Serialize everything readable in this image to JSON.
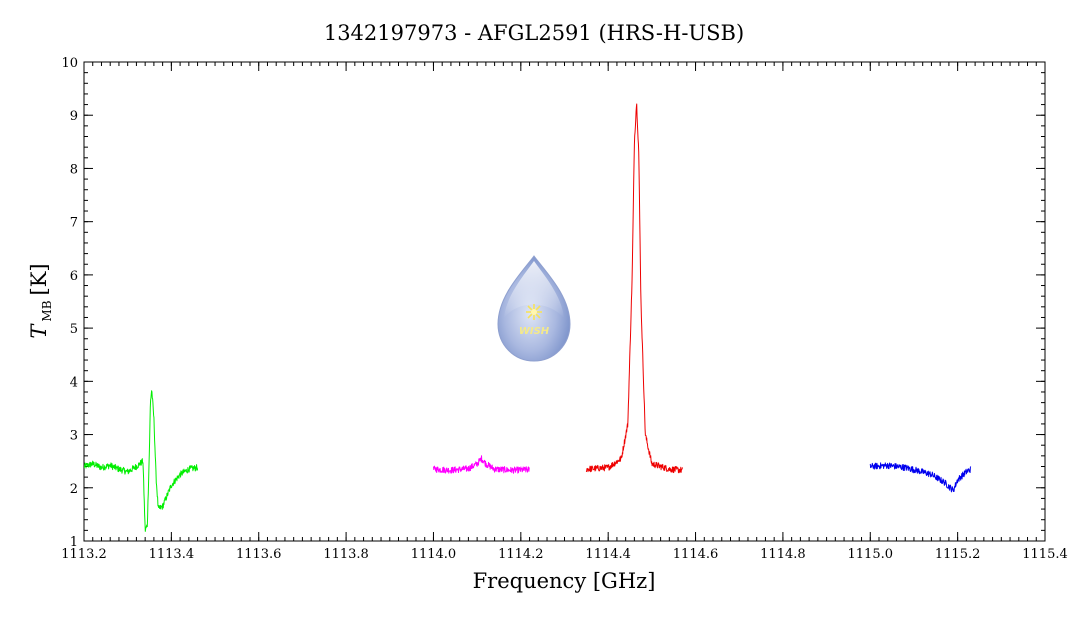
{
  "chart_data": {
    "type": "line",
    "title": "1342197973 - AFGL2591 (HRS-H-USB)",
    "xlabel": "Frequency [GHz]",
    "ylabel_main": "T",
    "ylabel_sub": "MB",
    "ylabel_unit": "[K]",
    "xlim": [
      1113.2,
      1115.4
    ],
    "ylim": [
      1,
      10
    ],
    "x_ticks": [
      1113.2,
      1113.4,
      1113.6,
      1113.8,
      1114.0,
      1114.2,
      1114.4,
      1114.6,
      1114.8,
      1115.0,
      1115.2,
      1115.4
    ],
    "x_tick_labels": [
      "1113.2",
      "1113.4",
      "1113.6",
      "1113.8",
      "1114.0",
      "1114.2",
      "1114.4",
      "1114.6",
      "1114.8",
      "1115.0",
      "1115.2",
      "1115.4"
    ],
    "y_ticks": [
      1,
      2,
      3,
      4,
      5,
      6,
      7,
      8,
      9,
      10
    ],
    "y_tick_labels": [
      "1",
      "2",
      "3",
      "4",
      "5",
      "6",
      "7",
      "8",
      "9",
      "10"
    ],
    "grid": false,
    "series": [
      {
        "color": "#00ee00",
        "x": [
          1113.2,
          1113.22,
          1113.24,
          1113.26,
          1113.28,
          1113.3,
          1113.32,
          1113.335,
          1113.34,
          1113.345,
          1113.35,
          1113.352,
          1113.355,
          1113.36,
          1113.365,
          1113.37,
          1113.38,
          1113.39,
          1113.4,
          1113.42,
          1113.44,
          1113.46
        ],
        "y": [
          2.4,
          2.45,
          2.38,
          2.42,
          2.35,
          2.3,
          2.4,
          2.5,
          1.2,
          1.3,
          2.8,
          3.6,
          3.85,
          3.3,
          2.2,
          1.6,
          1.65,
          1.85,
          2.05,
          2.25,
          2.35,
          2.38
        ]
      },
      {
        "color": "#ff00ff",
        "x": [
          1114.0,
          1114.04,
          1114.08,
          1114.1,
          1114.11,
          1114.12,
          1114.14,
          1114.18,
          1114.22
        ],
        "y": [
          2.35,
          2.33,
          2.36,
          2.45,
          2.55,
          2.45,
          2.35,
          2.33,
          2.34
        ]
      },
      {
        "color": "#ee0000",
        "x": [
          1114.35,
          1114.4,
          1114.43,
          1114.445,
          1114.455,
          1114.46,
          1114.465,
          1114.47,
          1114.475,
          1114.485,
          1114.5,
          1114.54,
          1114.57
        ],
        "y": [
          2.35,
          2.38,
          2.55,
          3.2,
          6.0,
          8.5,
          9.25,
          8.3,
          5.5,
          3.0,
          2.45,
          2.35,
          2.33
        ]
      },
      {
        "color": "#0000ee",
        "x": [
          1115.0,
          1115.04,
          1115.08,
          1115.11,
          1115.14,
          1115.17,
          1115.19,
          1115.2,
          1115.22,
          1115.23
        ],
        "y": [
          2.4,
          2.42,
          2.38,
          2.32,
          2.25,
          2.1,
          1.95,
          2.15,
          2.3,
          2.35
        ]
      }
    ]
  },
  "logo": {
    "text": "WISH",
    "accent_color": "#f7e35a",
    "drop_color": "#8fa3d4"
  }
}
